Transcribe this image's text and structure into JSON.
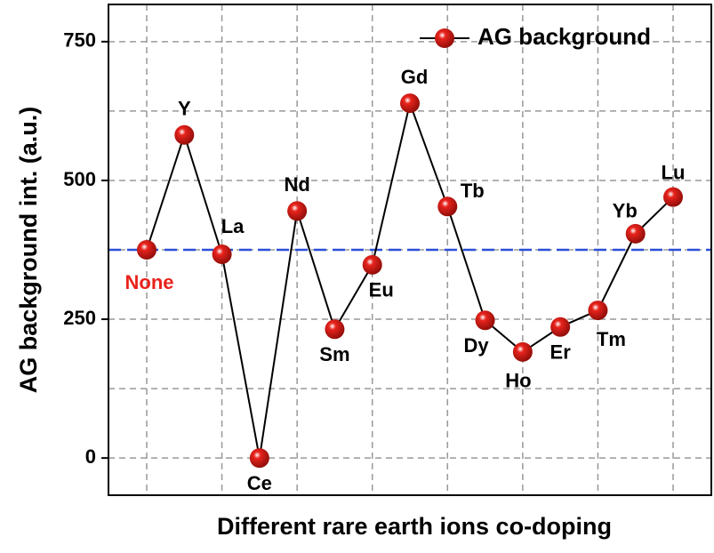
{
  "chart_data": {
    "type": "line",
    "x_label": "Different rare earth ions co-doping",
    "y_label": "AG background int. (a.u.)",
    "categories": [
      "None",
      "Y",
      "La",
      "Ce",
      "Nd",
      "Sm",
      "Eu",
      "Gd",
      "Tb",
      "Dy",
      "Ho",
      "Er",
      "Tm",
      "Yb",
      "Lu"
    ],
    "series": [
      {
        "name": "AG background",
        "color": "#e8231c",
        "values": [
          375,
          582,
          367,
          0,
          445,
          232,
          348,
          639,
          453,
          248,
          191,
          236,
          266,
          404,
          470
        ]
      }
    ],
    "reference_line": {
      "value": 375,
      "color": "#2a4fd8"
    },
    "highlight_color": "#e8231c",
    "ylim": [
      -67,
      817
    ],
    "yticks": [
      0,
      250,
      500,
      750
    ],
    "grid": true,
    "legend": "top-right"
  }
}
